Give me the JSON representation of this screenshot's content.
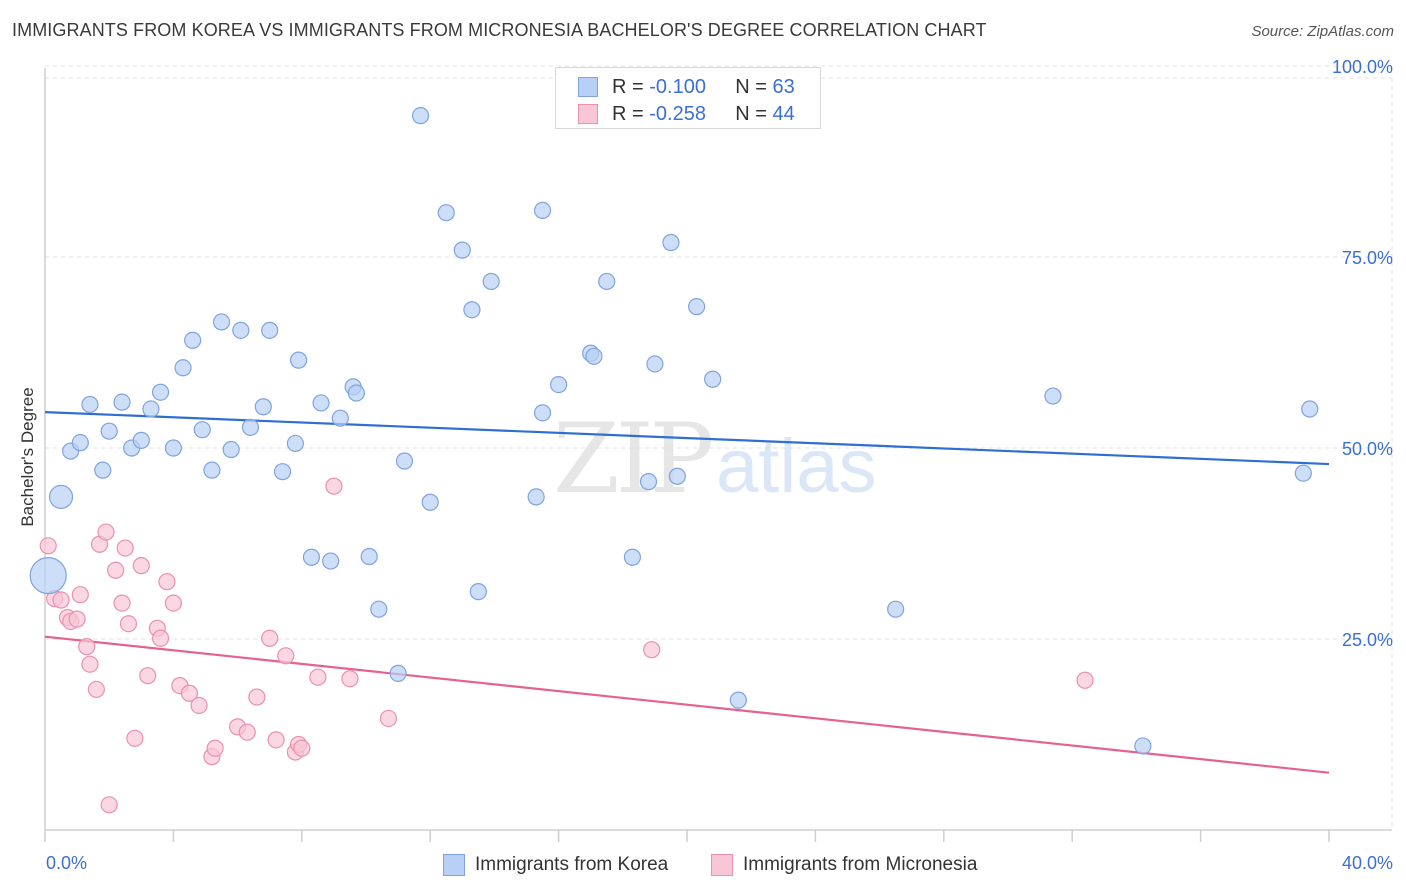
{
  "title": "IMMIGRANTS FROM KOREA VS IMMIGRANTS FROM MICRONESIA BACHELOR'S DEGREE CORRELATION CHART",
  "source": "Source: ZipAtlas.com",
  "watermark": {
    "zip": "ZIP",
    "atlas": "atlas"
  },
  "legend_top": {
    "r_label": "R = ",
    "n_label": "N = ",
    "rows": [
      {
        "r": "-0.100",
        "n": "63"
      },
      {
        "r": "-0.258",
        "n": "44"
      }
    ]
  },
  "colors": {
    "korea_fill": "#b8d0f5",
    "korea_stroke": "#7fa3e0",
    "korea_line": "#2f6fd0",
    "micronesia_fill": "#f8c6d6",
    "micronesia_stroke": "#ea91ae",
    "micronesia_line": "#e4628f",
    "tick_label": "#3b6fd4",
    "grid": "#e0e0e0"
  },
  "chart_data": {
    "type": "scatter",
    "title": "IMMIGRANTS FROM KOREA VS IMMIGRANTS FROM MICRONESIA BACHELOR'S DEGREE CORRELATION CHART",
    "xlabel": "",
    "ylabel": "Bachelor's Degree",
    "xlim": [
      0,
      40
    ],
    "ylim": [
      0,
      105
    ],
    "x_tick_labels": [
      "0.0%",
      "40.0%"
    ],
    "y_ticks": [
      25,
      50,
      75,
      100
    ],
    "y_tick_labels": [
      "25.0%",
      "50.0%",
      "75.0%",
      "100.0%"
    ],
    "grid": true,
    "legend_position": "bottom",
    "series": [
      {
        "name": "Immigrants from Korea",
        "r": -0.1,
        "n": 63,
        "trend": {
          "x": [
            0,
            40
          ],
          "y": [
            54.7,
            47.9
          ]
        },
        "points": [
          {
            "x": 0.5,
            "y": 43.6,
            "big": 1
          },
          {
            "x": 0.8,
            "y": 49.6
          },
          {
            "x": 1.1,
            "y": 50.7
          },
          {
            "x": 1.4,
            "y": 55.7
          },
          {
            "x": 1.8,
            "y": 47.1
          },
          {
            "x": 2.0,
            "y": 52.2
          },
          {
            "x": 2.4,
            "y": 56.0
          },
          {
            "x": 2.7,
            "y": 50.0
          },
          {
            "x": 3.0,
            "y": 51.0
          },
          {
            "x": 3.3,
            "y": 55.1
          },
          {
            "x": 3.6,
            "y": 57.3
          },
          {
            "x": 4.0,
            "y": 50.0
          },
          {
            "x": 4.3,
            "y": 60.5
          },
          {
            "x": 4.6,
            "y": 64.1
          },
          {
            "x": 4.9,
            "y": 52.4
          },
          {
            "x": 5.2,
            "y": 47.1
          },
          {
            "x": 5.5,
            "y": 66.5
          },
          {
            "x": 5.8,
            "y": 49.8
          },
          {
            "x": 6.1,
            "y": 65.4
          },
          {
            "x": 6.4,
            "y": 52.7
          },
          {
            "x": 6.8,
            "y": 55.4
          },
          {
            "x": 7.0,
            "y": 65.4
          },
          {
            "x": 7.4,
            "y": 46.9
          },
          {
            "x": 7.8,
            "y": 50.6
          },
          {
            "x": 7.9,
            "y": 61.5
          },
          {
            "x": 8.3,
            "y": 35.7
          },
          {
            "x": 8.6,
            "y": 55.9
          },
          {
            "x": 8.9,
            "y": 35.2
          },
          {
            "x": 9.2,
            "y": 53.9
          },
          {
            "x": 9.6,
            "y": 58.0
          },
          {
            "x": 9.7,
            "y": 57.2
          },
          {
            "x": 10.1,
            "y": 35.8
          },
          {
            "x": 10.4,
            "y": 28.9
          },
          {
            "x": 11.0,
            "y": 20.5
          },
          {
            "x": 11.2,
            "y": 48.3
          },
          {
            "x": 11.7,
            "y": 93.5
          },
          {
            "x": 12.0,
            "y": 42.9
          },
          {
            "x": 12.5,
            "y": 80.8
          },
          {
            "x": 13.0,
            "y": 75.9
          },
          {
            "x": 13.3,
            "y": 68.1
          },
          {
            "x": 13.5,
            "y": 31.2
          },
          {
            "x": 13.9,
            "y": 71.8
          },
          {
            "x": 15.3,
            "y": 43.6
          },
          {
            "x": 15.5,
            "y": 81.1
          },
          {
            "x": 15.5,
            "y": 54.6
          },
          {
            "x": 16.0,
            "y": 58.3
          },
          {
            "x": 17.0,
            "y": 62.4
          },
          {
            "x": 17.1,
            "y": 62.0
          },
          {
            "x": 17.5,
            "y": 71.8
          },
          {
            "x": 18.3,
            "y": 35.7
          },
          {
            "x": 18.8,
            "y": 45.6
          },
          {
            "x": 19.0,
            "y": 61.0
          },
          {
            "x": 19.5,
            "y": 76.9
          },
          {
            "x": 19.7,
            "y": 46.3
          },
          {
            "x": 20.3,
            "y": 68.5
          },
          {
            "x": 20.8,
            "y": 59.0
          },
          {
            "x": 21.6,
            "y": 17.0
          },
          {
            "x": 26.5,
            "y": 28.9
          },
          {
            "x": 31.4,
            "y": 56.8
          },
          {
            "x": 34.2,
            "y": 11.0
          },
          {
            "x": 39.2,
            "y": 46.7
          },
          {
            "x": 39.4,
            "y": 55.1
          },
          {
            "x": 0.1,
            "y": 33.3,
            "big": 2
          }
        ]
      },
      {
        "name": "Immigrants from Micronesia",
        "r": -0.258,
        "n": 44,
        "trend": {
          "x": [
            0,
            40
          ],
          "y": [
            25.3,
            7.5
          ]
        },
        "points": [
          {
            "x": 0.1,
            "y": 37.2
          },
          {
            "x": 0.3,
            "y": 30.3
          },
          {
            "x": 0.5,
            "y": 30.1
          },
          {
            "x": 0.7,
            "y": 27.8
          },
          {
            "x": 0.8,
            "y": 27.3
          },
          {
            "x": 1.0,
            "y": 27.6
          },
          {
            "x": 1.1,
            "y": 30.8
          },
          {
            "x": 1.3,
            "y": 24.0
          },
          {
            "x": 1.4,
            "y": 21.7
          },
          {
            "x": 1.6,
            "y": 18.4
          },
          {
            "x": 1.7,
            "y": 37.4
          },
          {
            "x": 1.9,
            "y": 39.0
          },
          {
            "x": 2.0,
            "y": 3.3
          },
          {
            "x": 2.2,
            "y": 34.0
          },
          {
            "x": 2.4,
            "y": 29.7
          },
          {
            "x": 2.5,
            "y": 36.9
          },
          {
            "x": 2.6,
            "y": 27.0
          },
          {
            "x": 2.8,
            "y": 12.0
          },
          {
            "x": 3.0,
            "y": 34.6
          },
          {
            "x": 3.2,
            "y": 20.2
          },
          {
            "x": 3.5,
            "y": 26.4
          },
          {
            "x": 3.6,
            "y": 25.1
          },
          {
            "x": 3.8,
            "y": 32.5
          },
          {
            "x": 4.0,
            "y": 29.7
          },
          {
            "x": 4.2,
            "y": 18.9
          },
          {
            "x": 4.5,
            "y": 17.9
          },
          {
            "x": 4.8,
            "y": 16.3
          },
          {
            "x": 5.2,
            "y": 9.6
          },
          {
            "x": 5.3,
            "y": 10.7
          },
          {
            "x": 6.0,
            "y": 13.5
          },
          {
            "x": 6.3,
            "y": 12.8
          },
          {
            "x": 6.6,
            "y": 17.4
          },
          {
            "x": 7.0,
            "y": 25.1
          },
          {
            "x": 7.2,
            "y": 11.8
          },
          {
            "x": 7.5,
            "y": 22.8
          },
          {
            "x": 7.8,
            "y": 10.2
          },
          {
            "x": 7.9,
            "y": 11.2
          },
          {
            "x": 8.0,
            "y": 10.7
          },
          {
            "x": 8.5,
            "y": 20.0
          },
          {
            "x": 9.0,
            "y": 45.0
          },
          {
            "x": 9.5,
            "y": 19.8
          },
          {
            "x": 10.7,
            "y": 14.6
          },
          {
            "x": 18.9,
            "y": 23.6
          },
          {
            "x": 32.4,
            "y": 19.6
          }
        ]
      }
    ]
  }
}
